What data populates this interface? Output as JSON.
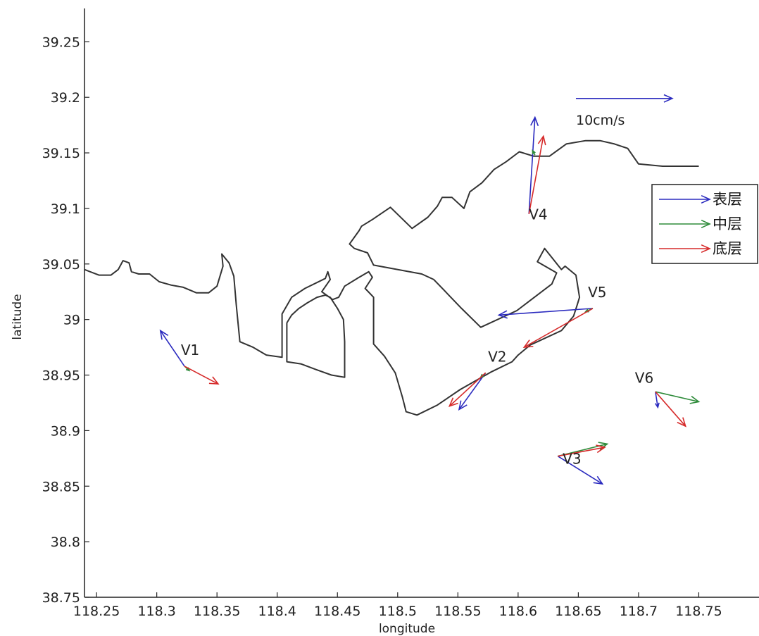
{
  "chart_data": {
    "type": "vector-field",
    "xlabel": "longitude",
    "ylabel": "latitude",
    "xlim": [
      118.24,
      118.8
    ],
    "ylim": [
      38.75,
      39.28
    ],
    "xticks": [
      118.25,
      118.3,
      118.35,
      118.4,
      118.45,
      118.5,
      118.55,
      118.6,
      118.65,
      118.7,
      118.75
    ],
    "yticks": [
      38.75,
      38.8,
      38.85,
      38.9,
      38.95,
      39.0,
      39.05,
      39.1,
      39.15,
      39.2,
      39.25
    ],
    "grid": false,
    "legend": {
      "placement": "right",
      "entries": [
        {
          "label": "表层",
          "color": "#2b2bbf"
        },
        {
          "label": "中层",
          "color": "#2e8b3a"
        },
        {
          "label": "底层",
          "color": "#d62a2a"
        }
      ]
    },
    "scale_arrow": {
      "label": "10cm/s",
      "x": 118.648,
      "y": 39.199,
      "dx": 0.08,
      "dy": 0,
      "color": "#2b2bbf"
    },
    "stations": [
      {
        "name": "V1",
        "label_x": 118.32,
        "label_y": 38.968,
        "vectors": [
          {
            "layer": "表层",
            "x": 118.323,
            "y": 38.958,
            "dx": -0.02,
            "dy": 0.032
          },
          {
            "layer": "中层",
            "x": 118.323,
            "y": 38.958,
            "dx": 0.004,
            "dy": -0.004
          },
          {
            "layer": "底层",
            "x": 118.323,
            "y": 38.958,
            "dx": 0.028,
            "dy": -0.016
          }
        ]
      },
      {
        "name": "V2",
        "label_x": 118.575,
        "label_y": 38.962,
        "vectors": [
          {
            "layer": "表层",
            "x": 118.573,
            "y": 38.952,
            "dx": -0.022,
            "dy": -0.033
          },
          {
            "layer": "中层",
            "x": 118.573,
            "y": 38.952,
            "dx": -0.004,
            "dy": -0.004
          },
          {
            "layer": "底层",
            "x": 118.573,
            "y": 38.952,
            "dx": -0.03,
            "dy": -0.03
          }
        ]
      },
      {
        "name": "V3",
        "label_x": 118.637,
        "label_y": 38.87,
        "vectors": [
          {
            "layer": "表层",
            "x": 118.633,
            "y": 38.877,
            "dx": 0.037,
            "dy": -0.025
          },
          {
            "layer": "中层",
            "x": 118.633,
            "y": 38.877,
            "dx": 0.041,
            "dy": 0.011
          },
          {
            "layer": "底层",
            "x": 118.633,
            "y": 38.877,
            "dx": 0.039,
            "dy": 0.008
          }
        ]
      },
      {
        "name": "V4",
        "label_x": 118.609,
        "label_y": 39.09,
        "vectors": [
          {
            "layer": "表层",
            "x": 118.609,
            "y": 39.095,
            "dx": 0.005,
            "dy": 0.087
          },
          {
            "layer": "中层",
            "x": 118.614,
            "y": 39.148,
            "dx": -0.002,
            "dy": 0.004
          },
          {
            "layer": "底层",
            "x": 118.609,
            "y": 39.095,
            "dx": 0.012,
            "dy": 0.07
          }
        ]
      },
      {
        "name": "V5",
        "label_x": 118.658,
        "label_y": 39.02,
        "vectors": [
          {
            "layer": "表层",
            "x": 118.662,
            "y": 39.01,
            "dx": -0.078,
            "dy": -0.006
          },
          {
            "layer": "中层",
            "x": 118.662,
            "y": 39.01,
            "dx": -0.006,
            "dy": -0.003
          },
          {
            "layer": "底层",
            "x": 118.662,
            "y": 39.01,
            "dx": -0.057,
            "dy": -0.035
          }
        ]
      },
      {
        "name": "V6",
        "label_x": 118.697,
        "label_y": 38.943,
        "vectors": [
          {
            "layer": "表层",
            "x": 118.714,
            "y": 38.935,
            "dx": 0.002,
            "dy": -0.014
          },
          {
            "layer": "中层",
            "x": 118.714,
            "y": 38.935,
            "dx": 0.036,
            "dy": -0.009
          },
          {
            "layer": "底层",
            "x": 118.714,
            "y": 38.935,
            "dx": 0.025,
            "dy": -0.031
          }
        ]
      }
    ],
    "coastline": [
      [
        [
          118.24,
          39.045
        ],
        [
          118.252,
          39.04
        ],
        [
          118.262,
          39.04
        ],
        [
          118.268,
          39.045
        ],
        [
          118.272,
          39.053
        ],
        [
          118.277,
          39.051
        ],
        [
          118.279,
          39.043
        ],
        [
          118.285,
          39.041
        ],
        [
          118.294,
          39.041
        ],
        [
          118.302,
          39.034
        ],
        [
          118.312,
          39.031
        ],
        [
          118.322,
          39.029
        ],
        [
          118.333,
          39.024
        ],
        [
          118.343,
          39.024
        ],
        [
          118.35,
          39.03
        ],
        [
          118.355,
          39.048
        ],
        [
          118.354,
          39.059
        ],
        [
          118.36,
          39.051
        ],
        [
          118.364,
          39.039
        ],
        [
          118.366,
          39.013
        ],
        [
          118.369,
          38.98
        ],
        [
          118.38,
          38.975
        ],
        [
          118.391,
          38.968
        ],
        [
          118.404,
          38.966
        ],
        [
          118.404,
          39.005
        ],
        [
          118.412,
          39.02
        ],
        [
          118.423,
          39.028
        ],
        [
          118.44,
          39.037
        ],
        [
          118.442,
          39.043
        ],
        [
          118.444,
          39.036
        ],
        [
          118.437,
          39.025
        ],
        [
          118.446,
          39.018
        ],
        [
          118.451,
          39.02
        ],
        [
          118.456,
          39.03
        ],
        [
          118.468,
          39.038
        ],
        [
          118.476,
          39.043
        ],
        [
          118.479,
          39.038
        ],
        [
          118.473,
          39.028
        ],
        [
          118.48,
          39.02
        ],
        [
          118.48,
          38.978
        ],
        [
          118.489,
          38.967
        ],
        [
          118.498,
          38.952
        ],
        [
          118.504,
          38.93
        ],
        [
          118.507,
          38.917
        ],
        [
          118.516,
          38.914
        ],
        [
          118.533,
          38.923
        ],
        [
          118.552,
          38.937
        ],
        [
          118.578,
          38.953
        ],
        [
          118.595,
          38.962
        ],
        [
          118.6,
          38.968
        ],
        [
          118.61,
          38.977
        ],
        [
          118.636,
          38.99
        ],
        [
          118.646,
          39.003
        ],
        [
          118.649,
          39.013
        ],
        [
          118.651,
          39.02
        ],
        [
          118.648,
          39.04
        ],
        [
          118.639,
          39.048
        ],
        [
          118.636,
          39.045
        ],
        [
          118.622,
          39.064
        ],
        [
          118.616,
          39.052
        ],
        [
          118.632,
          39.042
        ],
        [
          118.628,
          39.032
        ],
        [
          118.611,
          39.018
        ],
        [
          118.599,
          39.008
        ],
        [
          118.569,
          38.993
        ],
        [
          118.553,
          39.01
        ],
        [
          118.538,
          39.027
        ],
        [
          118.53,
          39.036
        ],
        [
          118.52,
          39.041
        ],
        [
          118.48,
          39.049
        ],
        [
          118.475,
          39.06
        ],
        [
          118.464,
          39.064
        ],
        [
          118.46,
          39.068
        ],
        [
          118.468,
          39.08
        ],
        [
          118.47,
          39.084
        ],
        [
          118.479,
          39.09
        ],
        [
          118.494,
          39.101
        ],
        [
          118.512,
          39.082
        ],
        [
          118.525,
          39.092
        ],
        [
          118.533,
          39.102
        ],
        [
          118.537,
          39.11
        ],
        [
          118.545,
          39.11
        ],
        [
          118.555,
          39.1
        ],
        [
          118.56,
          39.115
        ],
        [
          118.57,
          39.123
        ],
        [
          118.58,
          39.135
        ],
        [
          118.59,
          39.142
        ],
        [
          118.601,
          39.151
        ],
        [
          118.613,
          39.147
        ],
        [
          118.626,
          39.147
        ],
        [
          118.64,
          39.158
        ],
        [
          118.656,
          39.161
        ],
        [
          118.668,
          39.161
        ],
        [
          118.68,
          39.158
        ],
        [
          118.691,
          39.154
        ],
        [
          118.7,
          39.14
        ],
        [
          118.71,
          39.139
        ],
        [
          118.72,
          39.138
        ],
        [
          118.733,
          39.138
        ],
        [
          118.75,
          39.138
        ]
      ],
      [
        [
          118.408,
          38.997
        ],
        [
          118.412,
          39.004
        ],
        [
          118.418,
          39.01
        ],
        [
          118.425,
          39.015
        ],
        [
          118.433,
          39.02
        ],
        [
          118.44,
          39.022
        ],
        [
          118.444,
          39.02
        ],
        [
          118.45,
          39.01
        ],
        [
          118.455,
          39.0
        ],
        [
          118.456,
          38.98
        ],
        [
          118.456,
          38.948
        ],
        [
          118.445,
          38.95
        ],
        [
          118.432,
          38.955
        ],
        [
          118.42,
          38.96
        ],
        [
          118.408,
          38.962
        ],
        [
          118.408,
          38.997
        ]
      ]
    ]
  }
}
